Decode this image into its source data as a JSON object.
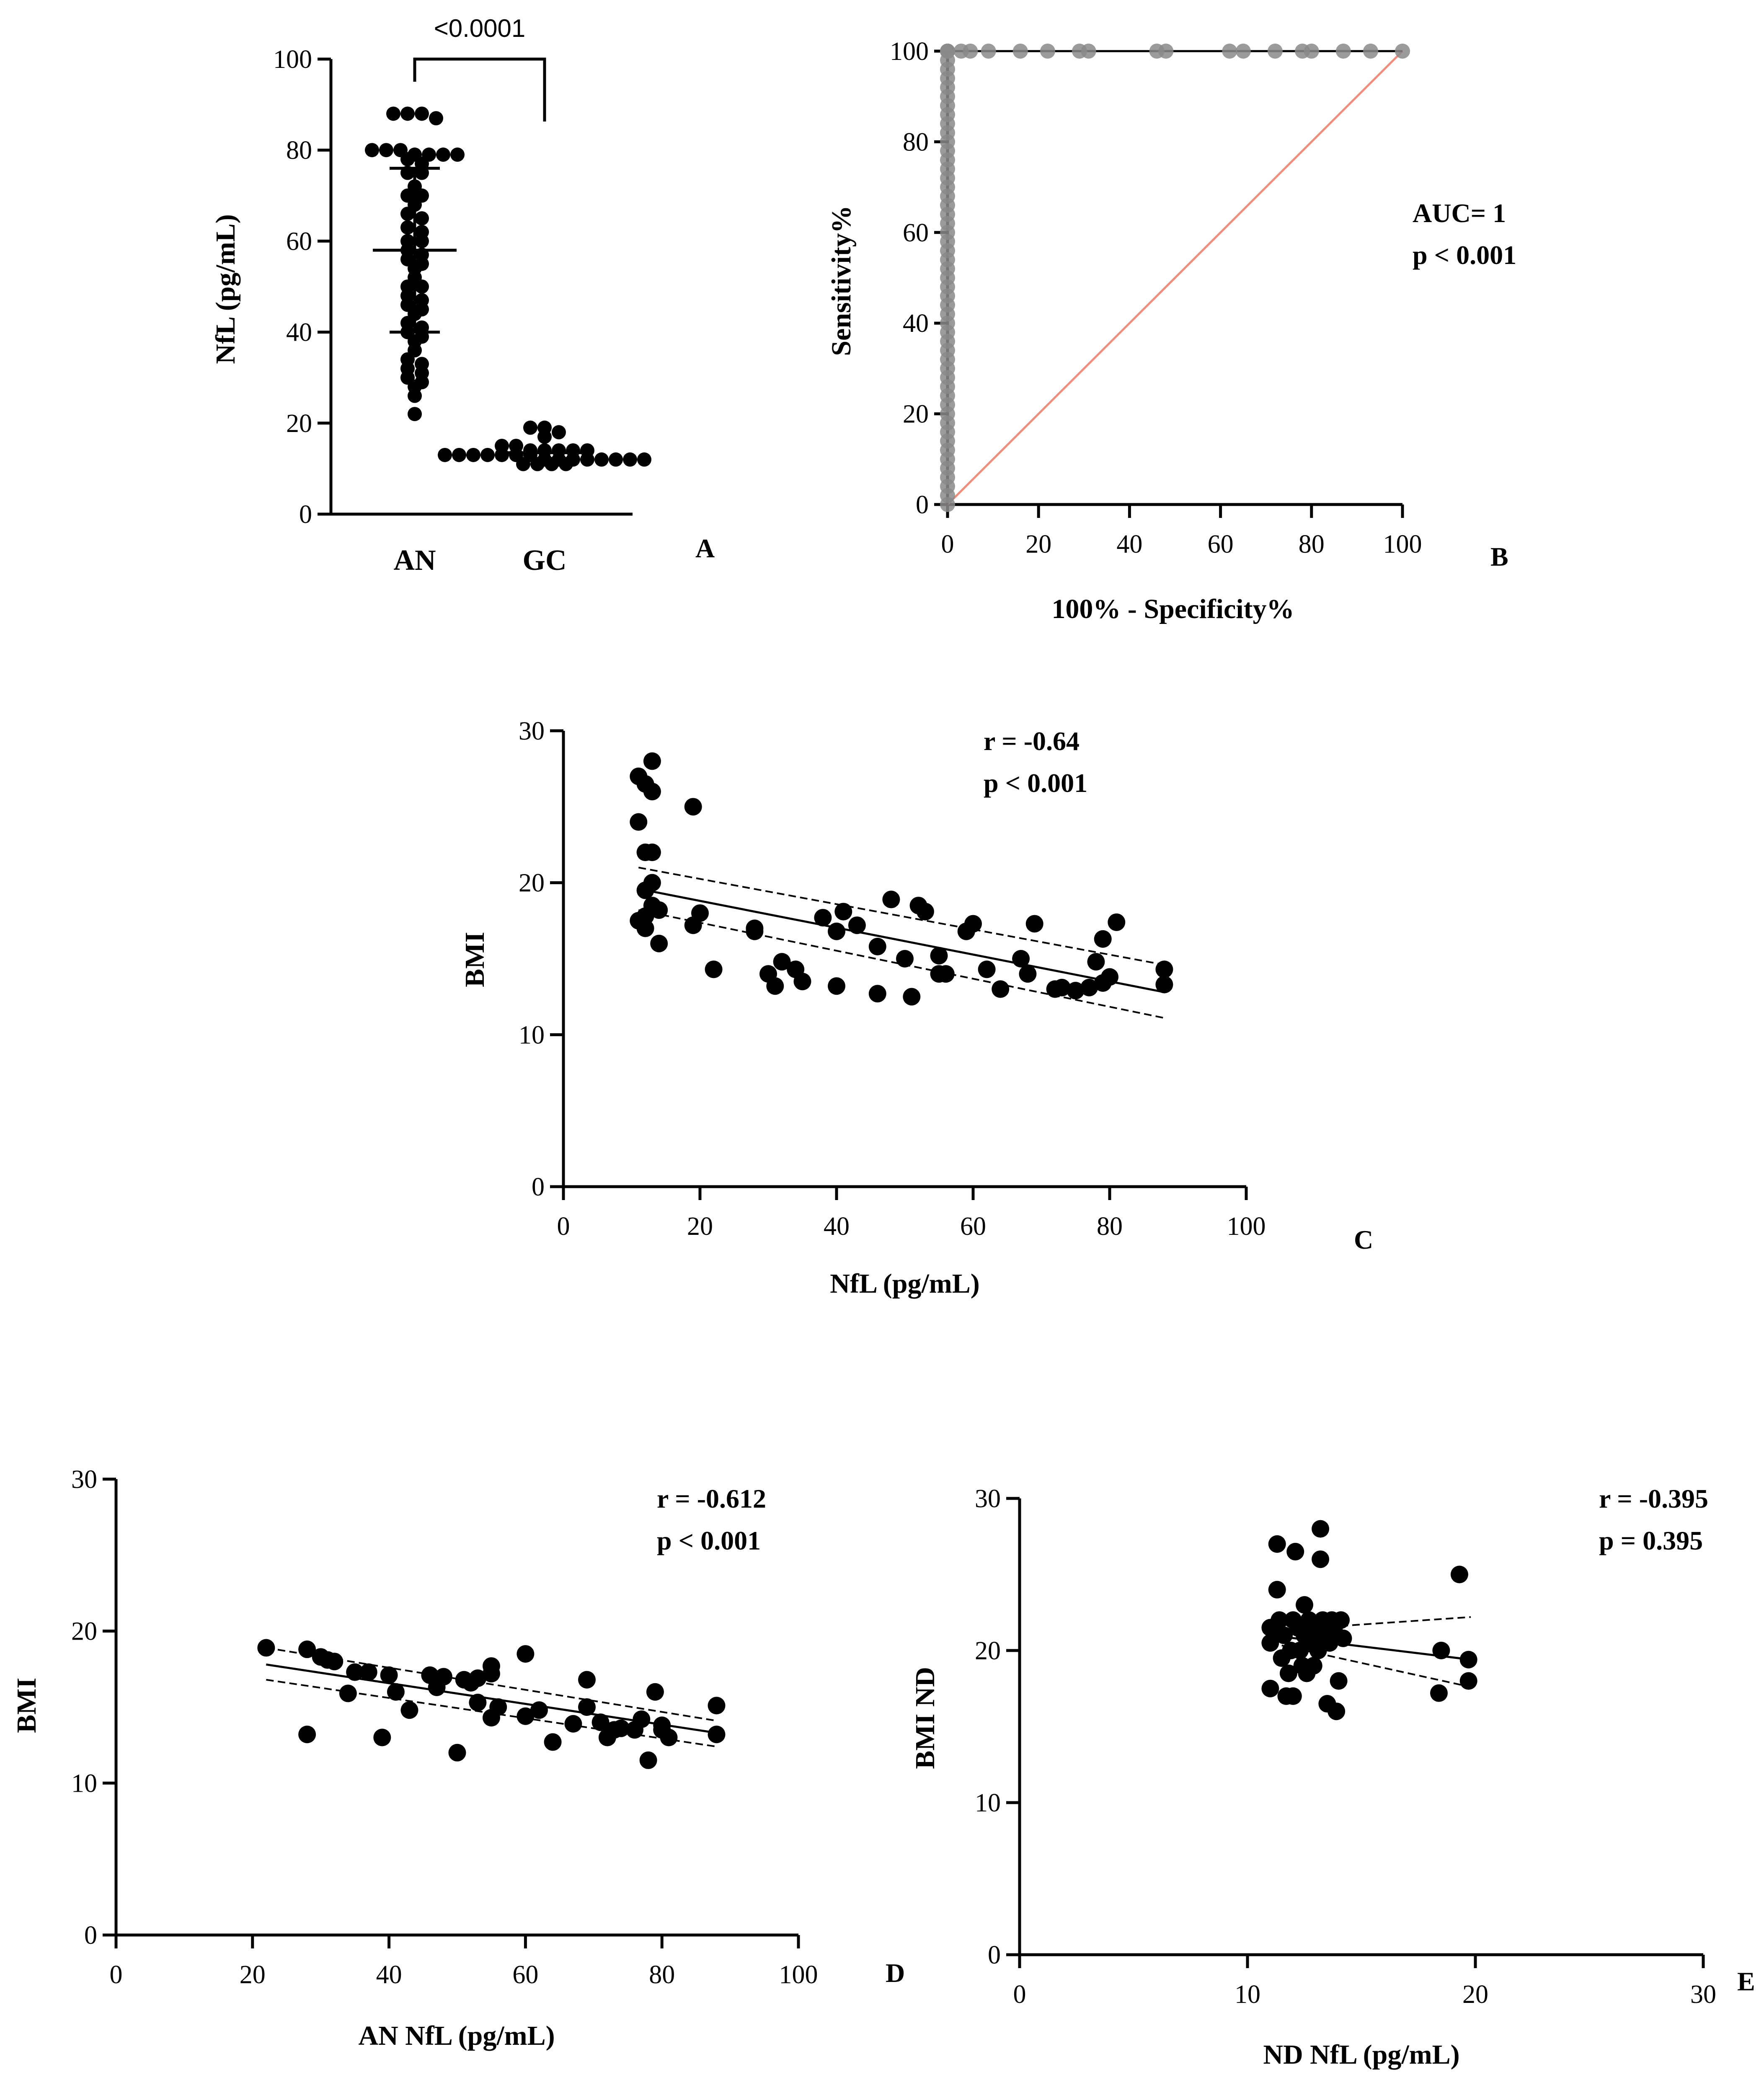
{
  "chart_data": [
    {
      "id": "A",
      "type": "scatter",
      "panel_label": "A",
      "ylabel": "NfL (pg/mL)",
      "categories": [
        "AN",
        "GC"
      ],
      "ylim": [
        0,
        100
      ],
      "yticks": [
        0,
        20,
        40,
        60,
        80,
        100
      ],
      "significance": "<0.0001",
      "series": [
        {
          "name": "AN",
          "mean": 58,
          "values": [
            88,
            88,
            88,
            87,
            80,
            80,
            80,
            79,
            79,
            79,
            79,
            78,
            77,
            75,
            75,
            72,
            70,
            70,
            68,
            66,
            65,
            63,
            62,
            60,
            60,
            58,
            57,
            56,
            55,
            54,
            52,
            50,
            50,
            48,
            47,
            46,
            45,
            44,
            42,
            41,
            40,
            39,
            38,
            36,
            34,
            33,
            32,
            31,
            30,
            29,
            28,
            26,
            22
          ]
        },
        {
          "name": "GC",
          "mean": 13.5,
          "values": [
            19,
            19,
            18,
            17,
            15,
            15,
            14,
            14,
            14,
            14,
            14,
            13,
            13,
            13,
            13,
            13,
            13,
            13,
            12,
            12,
            12,
            12,
            12,
            12,
            12,
            12,
            11,
            11,
            11,
            11
          ]
        }
      ]
    },
    {
      "id": "B",
      "type": "line",
      "panel_label": "B",
      "xlabel": "100% - Specificity%",
      "ylabel": "Sensitivity%",
      "xlim": [
        0,
        100
      ],
      "ylim": [
        0,
        100
      ],
      "xticks": [
        0,
        20,
        40,
        60,
        80,
        100
      ],
      "yticks": [
        0,
        20,
        40,
        60,
        80,
        100
      ],
      "annotations": [
        "AUC= 1",
        "p < 0.001"
      ],
      "series": [
        {
          "name": "ROC",
          "x": [
            0,
            0,
            0,
            0,
            0,
            0,
            0,
            0,
            0,
            0,
            0,
            0,
            0,
            0,
            0,
            0,
            0,
            0,
            0,
            0,
            0,
            0,
            0,
            0,
            0,
            0,
            0,
            0,
            0,
            0,
            0,
            0,
            0,
            0,
            0,
            0,
            0,
            0,
            0,
            0,
            0,
            0,
            0,
            0,
            0,
            0,
            0,
            0,
            0,
            0,
            0,
            0,
            0,
            0,
            0,
            3,
            5,
            9,
            16,
            22,
            29,
            31,
            46,
            48,
            62,
            65,
            72,
            78,
            80,
            87,
            93,
            100
          ],
          "y": [
            0,
            2,
            4,
            6,
            8,
            10,
            12,
            14,
            16,
            18,
            20,
            22,
            24,
            26,
            28,
            30,
            32,
            34,
            36,
            38,
            40,
            42,
            44,
            46,
            48,
            50,
            52,
            54,
            56,
            58,
            60,
            62,
            64,
            66,
            68,
            70,
            72,
            74,
            76,
            78,
            80,
            82,
            84,
            86,
            88,
            90,
            92,
            94,
            96,
            98,
            100,
            100,
            100,
            100,
            100,
            100,
            100,
            100,
            100,
            100,
            100,
            100,
            100,
            100,
            100,
            100,
            100,
            100,
            100,
            100,
            100,
            100
          ]
        },
        {
          "name": "Reference",
          "x": [
            0,
            100
          ],
          "y": [
            0,
            100
          ],
          "color": "#f28c7b"
        }
      ]
    },
    {
      "id": "C",
      "type": "scatter",
      "panel_label": "C",
      "xlabel": "NfL (pg/mL)",
      "ylabel": "BMI",
      "xlim": [
        0,
        100
      ],
      "ylim": [
        0,
        30
      ],
      "xticks": [
        0,
        20,
        40,
        60,
        80,
        100
      ],
      "yticks": [
        0,
        10,
        20,
        30
      ],
      "annotations": [
        "r = -0.64",
        "p < 0.001"
      ],
      "fit": {
        "x": [
          11,
          88
        ],
        "y": [
          19.6,
          12.8
        ],
        "ci_upper": [
          21.0,
          14.6
        ],
        "ci_lower": [
          18.2,
          11.1
        ]
      },
      "points": [
        [
          11,
          27
        ],
        [
          12,
          26.5
        ],
        [
          13,
          28
        ],
        [
          13,
          26
        ],
        [
          11,
          24
        ],
        [
          12,
          22
        ],
        [
          13,
          22
        ],
        [
          13,
          20
        ],
        [
          12,
          19.5
        ],
        [
          13,
          18.5
        ],
        [
          14,
          18.2
        ],
        [
          11,
          17.5
        ],
        [
          12,
          17.8
        ],
        [
          12,
          17
        ],
        [
          14,
          16
        ],
        [
          19,
          25
        ],
        [
          20,
          18
        ],
        [
          19,
          17.2
        ],
        [
          22,
          14.3
        ],
        [
          28,
          17
        ],
        [
          28,
          16.8
        ],
        [
          30,
          14
        ],
        [
          31,
          13.2
        ],
        [
          32,
          14.8
        ],
        [
          34,
          14.3
        ],
        [
          35,
          13.5
        ],
        [
          38,
          17.7
        ],
        [
          40,
          16.8
        ],
        [
          40,
          13.2
        ],
        [
          41,
          18.1
        ],
        [
          43,
          17.2
        ],
        [
          46,
          15.8
        ],
        [
          46,
          12.7
        ],
        [
          48,
          18.9
        ],
        [
          50,
          15
        ],
        [
          51,
          12.5
        ],
        [
          52,
          18.5
        ],
        [
          53,
          18.1
        ],
        [
          55,
          15.2
        ],
        [
          55,
          14
        ],
        [
          56,
          14
        ],
        [
          59,
          16.8
        ],
        [
          60,
          17.3
        ],
        [
          62,
          14.3
        ],
        [
          64,
          13
        ],
        [
          67,
          15
        ],
        [
          68,
          14
        ],
        [
          69,
          17.3
        ],
        [
          72,
          13
        ],
        [
          73,
          13.1
        ],
        [
          75,
          12.9
        ],
        [
          77,
          13.1
        ],
        [
          78,
          14.8
        ],
        [
          79,
          16.3
        ],
        [
          79,
          13.4
        ],
        [
          80,
          13.8
        ],
        [
          81,
          17.4
        ],
        [
          88,
          14.3
        ],
        [
          88,
          13.3
        ]
      ]
    },
    {
      "id": "D",
      "type": "scatter",
      "panel_label": "D",
      "xlabel": "AN NfL (pg/mL)",
      "ylabel": "BMI",
      "xlim": [
        0,
        100
      ],
      "ylim": [
        0,
        30
      ],
      "xticks": [
        0,
        20,
        40,
        60,
        80,
        100
      ],
      "yticks": [
        0,
        10,
        20,
        30
      ],
      "annotations": [
        "r = -0.612",
        "p < 0.001"
      ],
      "fit": {
        "x": [
          22,
          88
        ],
        "y": [
          17.8,
          13.3
        ],
        "ci_upper": [
          18.9,
          14.1
        ],
        "ci_lower": [
          16.8,
          12.4
        ]
      },
      "points": [
        [
          22,
          18.9
        ],
        [
          28,
          18.8
        ],
        [
          28,
          13.2
        ],
        [
          30,
          18.3
        ],
        [
          31,
          18.1
        ],
        [
          32,
          18
        ],
        [
          34,
          15.9
        ],
        [
          35,
          17.3
        ],
        [
          37,
          17.3
        ],
        [
          39,
          13
        ],
        [
          40,
          17.1
        ],
        [
          41,
          16
        ],
        [
          43,
          14.8
        ],
        [
          46,
          17.1
        ],
        [
          47,
          16.3
        ],
        [
          48,
          17
        ],
        [
          50,
          12
        ],
        [
          51,
          16.8
        ],
        [
          52,
          16.6
        ],
        [
          53,
          16.9
        ],
        [
          53,
          15.3
        ],
        [
          55,
          17.7
        ],
        [
          55,
          17.2
        ],
        [
          55,
          14.3
        ],
        [
          56,
          15
        ],
        [
          60,
          18.5
        ],
        [
          60,
          14.4
        ],
        [
          62,
          14.8
        ],
        [
          64,
          12.7
        ],
        [
          67,
          13.9
        ],
        [
          69,
          15
        ],
        [
          69,
          16.8
        ],
        [
          71,
          14
        ],
        [
          72,
          13
        ],
        [
          73,
          13.5
        ],
        [
          74,
          13.6
        ],
        [
          76,
          13.5
        ],
        [
          77,
          14.2
        ],
        [
          78,
          11.5
        ],
        [
          79,
          16
        ],
        [
          80,
          13.8
        ],
        [
          80,
          13.5
        ],
        [
          81,
          13
        ],
        [
          88,
          15.1
        ],
        [
          88,
          13.2
        ]
      ]
    },
    {
      "id": "E",
      "type": "scatter",
      "panel_label": "E",
      "xlabel": "ND NfL (pg/mL)",
      "ylabel": "BMI ND",
      "xlim": [
        0,
        30
      ],
      "ylim": [
        0,
        30
      ],
      "xticks": [
        0,
        10,
        20,
        30
      ],
      "yticks": [
        0,
        10,
        20,
        30
      ],
      "annotations": [
        "r = -0.395",
        "p = 0.395"
      ],
      "fit": {
        "x": [
          11,
          19.8
        ],
        "y": [
          21.0,
          19.4
        ],
        "ci_upper": [
          21.3,
          22.2
        ],
        "ci_lower": [
          20.5,
          17.6
        ]
      },
      "points": [
        [
          11,
          21.5
        ],
        [
          11,
          20.5
        ],
        [
          11,
          17.5
        ],
        [
          11.3,
          27
        ],
        [
          11.3,
          24
        ],
        [
          11.4,
          22
        ],
        [
          11.5,
          19.5
        ],
        [
          11.6,
          21
        ],
        [
          11.7,
          17
        ],
        [
          11.8,
          18.5
        ],
        [
          11.9,
          20
        ],
        [
          12,
          22
        ],
        [
          12,
          17
        ],
        [
          12.1,
          26.5
        ],
        [
          12.2,
          21.5
        ],
        [
          12.3,
          20
        ],
        [
          12.4,
          19
        ],
        [
          12.5,
          23
        ],
        [
          12.5,
          21
        ],
        [
          12.6,
          18.5
        ],
        [
          12.7,
          22
        ],
        [
          12.8,
          20.5
        ],
        [
          12.9,
          19
        ],
        [
          13,
          21.5
        ],
        [
          13.1,
          20
        ],
        [
          13.2,
          28
        ],
        [
          13.2,
          26
        ],
        [
          13.3,
          22
        ],
        [
          13.4,
          21
        ],
        [
          13.5,
          16.5
        ],
        [
          13.6,
          20.5
        ],
        [
          13.7,
          22
        ],
        [
          13.8,
          21.5
        ],
        [
          13.9,
          16
        ],
        [
          14,
          18
        ],
        [
          14.1,
          22
        ],
        [
          14.2,
          20.8
        ],
        [
          18.4,
          17.2
        ],
        [
          18.5,
          20
        ],
        [
          19.3,
          25
        ],
        [
          19.7,
          19.4
        ],
        [
          19.7,
          18
        ]
      ]
    }
  ]
}
